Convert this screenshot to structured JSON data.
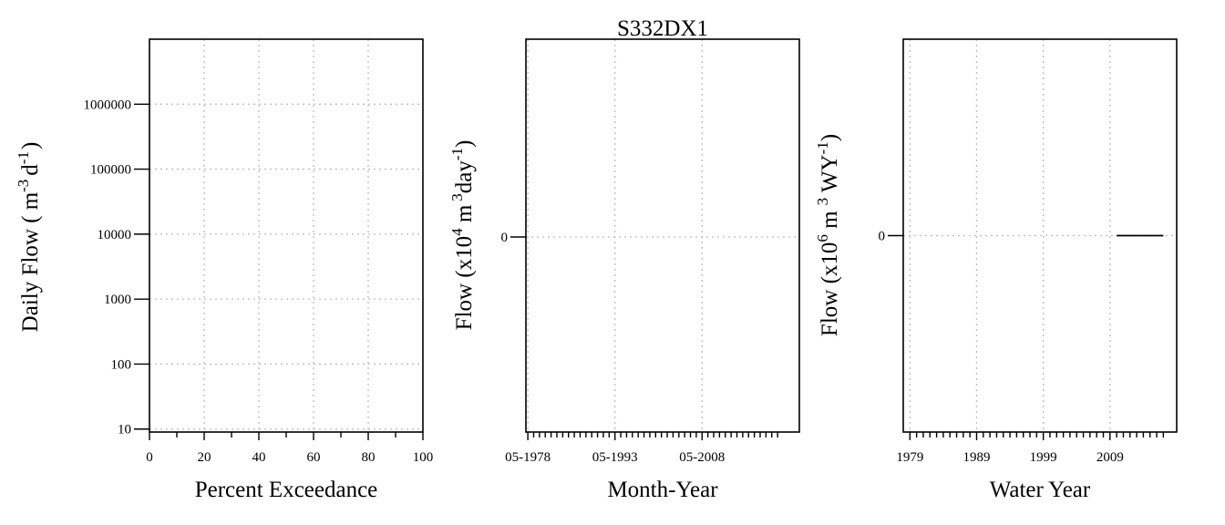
{
  "title": "S332DX1",
  "chart_data": [
    {
      "type": "line",
      "xlabel": "Percent Exceedance",
      "ylabel": {
        "pre": "Daily Flow ( m",
        "sup1": "-3",
        "mid": "d",
        "sup2": "-1",
        "post": ")"
      },
      "xlim": [
        0,
        100
      ],
      "x_ticks": [
        0,
        20,
        40,
        60,
        80,
        100
      ],
      "x_tick_labels": [
        "0",
        "20",
        "40",
        "60",
        "80",
        "100"
      ],
      "x_minor_ticks": [
        10,
        30,
        50,
        70,
        90
      ],
      "y_scale": "log",
      "ylim": [
        9,
        10000000
      ],
      "y_ticks": [
        10,
        100,
        1000,
        10000,
        100000,
        1000000
      ],
      "y_tick_labels": [
        "10",
        "100",
        "1000",
        "10000",
        "100000",
        "1000000"
      ],
      "grid": true,
      "series": [
        {
          "x": [],
          "y": []
        }
      ]
    },
    {
      "type": "line",
      "xlabel": "Month-Year",
      "ylabel": {
        "pre": "Flow (x10",
        "sup1": "4",
        "mid": " m",
        "sup2": "3",
        "post": "day",
        "sup3": "-1",
        "end": ")"
      },
      "x_tick_labels": [
        "05-1978",
        "05-1993",
        "05-2008"
      ],
      "y_tick_labels": [
        "0"
      ],
      "grid": true,
      "series": [
        {
          "x": [],
          "y": []
        }
      ]
    },
    {
      "type": "line",
      "xlabel": "Water Year",
      "ylabel": {
        "pre": "Flow (x10",
        "sup1": "6",
        "mid": " m",
        "sup2": "3",
        "post": " WY",
        "sup3": "-1",
        "end": ")"
      },
      "xlim": [
        1978,
        2019
      ],
      "x_ticks": [
        1979,
        1989,
        1999,
        2009
      ],
      "x_tick_labels": [
        "1979",
        "1989",
        "1999",
        "2009"
      ],
      "y_tick_labels": [
        "0"
      ],
      "ylim": [
        -1,
        1
      ],
      "grid": true,
      "series": [
        {
          "x": [
            2010,
            2017
          ],
          "y": [
            0,
            0
          ]
        }
      ]
    }
  ]
}
